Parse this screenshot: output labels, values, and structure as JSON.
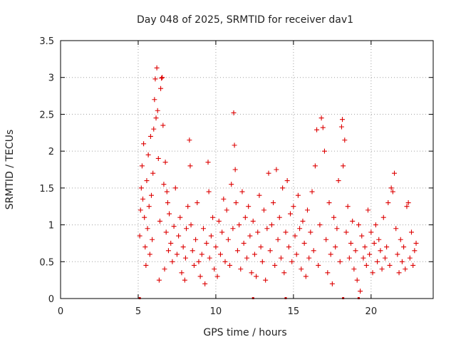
{
  "chart_data": {
    "type": "scatter",
    "title": "Day 048 of 2025, SRMTID for receiver dav1",
    "xlabel": "GPS time / hours",
    "ylabel": "SRMTID / TECUs",
    "xlim": [
      0,
      24
    ],
    "ylim": [
      0,
      3.5
    ],
    "x_ticks": [
      0,
      5,
      10,
      15,
      20
    ],
    "x_tick_labels": [
      "0",
      "5",
      "10",
      "15",
      "20"
    ],
    "y_ticks": [
      0,
      0.5,
      1,
      1.5,
      2,
      2.5,
      3,
      3.5
    ],
    "y_tick_labels": [
      "0",
      "0.5",
      "1",
      "1.5",
      "2",
      "2.5",
      "3",
      "3.5"
    ],
    "grid": true,
    "marker": "plus",
    "color": "#dd0000",
    "series": [
      {
        "name": "SRMTID",
        "points": [
          [
            5.1,
            0.85
          ],
          [
            5.15,
            1.2
          ],
          [
            5.2,
            1.5
          ],
          [
            5.25,
            1.8
          ],
          [
            5.3,
            1.35
          ],
          [
            5.35,
            2.1
          ],
          [
            5.4,
            1.1
          ],
          [
            5.45,
            0.7
          ],
          [
            5.5,
            0.45
          ],
          [
            5.55,
            1.6
          ],
          [
            5.6,
            0.95
          ],
          [
            5.65,
            1.95
          ],
          [
            5.7,
            1.25
          ],
          [
            5.75,
            0.6
          ],
          [
            5.8,
            2.2
          ],
          [
            5.85,
            1.4
          ],
          [
            5.9,
            0.8
          ],
          [
            5.95,
            1.7
          ],
          [
            6.0,
            2.3
          ],
          [
            6.05,
            2.7
          ],
          [
            6.1,
            2.98
          ],
          [
            6.15,
            2.45
          ],
          [
            6.2,
            3.13
          ],
          [
            6.25,
            2.55
          ],
          [
            6.3,
            1.9
          ],
          [
            6.35,
            0.25
          ],
          [
            6.4,
            1.05
          ],
          [
            6.45,
            2.85
          ],
          [
            6.5,
            2.99
          ],
          [
            6.55,
            3.0
          ],
          [
            6.6,
            2.35
          ],
          [
            6.65,
            1.55
          ],
          [
            6.7,
            0.4
          ],
          [
            6.75,
            1.85
          ],
          [
            6.8,
            0.9
          ],
          [
            6.85,
            1.45
          ],
          [
            6.9,
            1.3
          ],
          [
            6.95,
            0.65
          ],
          [
            7.0,
            1.15
          ],
          [
            7.1,
            0.75
          ],
          [
            7.2,
            0.5
          ],
          [
            7.3,
            0.98
          ],
          [
            7.4,
            1.5
          ],
          [
            7.5,
            0.6
          ],
          [
            7.6,
            0.85
          ],
          [
            7.7,
            1.1
          ],
          [
            7.8,
            0.35
          ],
          [
            7.9,
            0.7
          ],
          [
            8.0,
            0.25
          ],
          [
            8.05,
            0.55
          ],
          [
            8.1,
            0.95
          ],
          [
            8.2,
            1.25
          ],
          [
            8.3,
            2.15
          ],
          [
            8.35,
            1.8
          ],
          [
            8.4,
            1.0
          ],
          [
            8.5,
            0.65
          ],
          [
            8.6,
            0.45
          ],
          [
            8.7,
            0.8
          ],
          [
            8.8,
            1.3
          ],
          [
            8.9,
            0.5
          ],
          [
            9.0,
            0.3
          ],
          [
            9.1,
            0.6
          ],
          [
            9.2,
            0.95
          ],
          [
            9.3,
            0.2
          ],
          [
            9.4,
            0.75
          ],
          [
            9.5,
            1.85
          ],
          [
            9.55,
            1.45
          ],
          [
            9.6,
            0.55
          ],
          [
            9.7,
            0.85
          ],
          [
            9.8,
            1.1
          ],
          [
            9.9,
            0.4
          ],
          [
            10.0,
            0.7
          ],
          [
            10.1,
            0.3
          ],
          [
            10.2,
            1.05
          ],
          [
            10.3,
            0.6
          ],
          [
            10.4,
            0.9
          ],
          [
            10.5,
            1.35
          ],
          [
            10.6,
            0.5
          ],
          [
            10.7,
            1.2
          ],
          [
            10.8,
            0.8
          ],
          [
            10.9,
            0.45
          ],
          [
            11.0,
            1.55
          ],
          [
            11.1,
            0.95
          ],
          [
            11.15,
            2.52
          ],
          [
            11.2,
            2.08
          ],
          [
            11.25,
            1.75
          ],
          [
            11.3,
            1.3
          ],
          [
            11.4,
            0.65
          ],
          [
            11.5,
            1.0
          ],
          [
            11.6,
            0.4
          ],
          [
            11.7,
            1.45
          ],
          [
            11.8,
            0.75
          ],
          [
            11.9,
            1.1
          ],
          [
            12.0,
            0.55
          ],
          [
            12.1,
            1.25
          ],
          [
            12.2,
            0.85
          ],
          [
            12.3,
            0.35
          ],
          [
            12.4,
            1.05
          ],
          [
            12.5,
            0.6
          ],
          [
            12.6,
            0.3
          ],
          [
            12.7,
            0.9
          ],
          [
            12.8,
            1.4
          ],
          [
            12.9,
            0.7
          ],
          [
            13.0,
            0.5
          ],
          [
            13.1,
            1.2
          ],
          [
            13.2,
            0.25
          ],
          [
            13.3,
            0.95
          ],
          [
            13.4,
            1.7
          ],
          [
            13.5,
            0.65
          ],
          [
            13.6,
            1.0
          ],
          [
            13.7,
            1.3
          ],
          [
            13.8,
            0.45
          ],
          [
            13.9,
            1.75
          ],
          [
            14.0,
            0.8
          ],
          [
            14.1,
            1.1
          ],
          [
            14.2,
            0.55
          ],
          [
            14.3,
            1.5
          ],
          [
            14.4,
            0.35
          ],
          [
            14.5,
            0.9
          ],
          [
            14.6,
            1.6
          ],
          [
            14.7,
            0.7
          ],
          [
            14.8,
            1.15
          ],
          [
            14.9,
            0.5
          ],
          [
            15.0,
            1.25
          ],
          [
            15.1,
            0.85
          ],
          [
            15.2,
            0.6
          ],
          [
            15.3,
            1.4
          ],
          [
            15.4,
            0.95
          ],
          [
            15.5,
            0.4
          ],
          [
            15.6,
            1.05
          ],
          [
            15.7,
            0.75
          ],
          [
            15.8,
            0.3
          ],
          [
            15.9,
            1.2
          ],
          [
            16.0,
            0.55
          ],
          [
            16.1,
            0.9
          ],
          [
            16.2,
            1.45
          ],
          [
            16.3,
            0.65
          ],
          [
            16.4,
            1.8
          ],
          [
            16.5,
            2.29
          ],
          [
            16.6,
            0.45
          ],
          [
            16.7,
            1.0
          ],
          [
            16.8,
            2.45
          ],
          [
            16.9,
            2.32
          ],
          [
            17.0,
            2.0
          ],
          [
            17.1,
            0.8
          ],
          [
            17.2,
            0.35
          ],
          [
            17.3,
            1.3
          ],
          [
            17.4,
            0.6
          ],
          [
            17.5,
            0.2
          ],
          [
            17.6,
            1.1
          ],
          [
            17.7,
            0.7
          ],
          [
            17.8,
            0.95
          ],
          [
            17.9,
            1.6
          ],
          [
            18.0,
            0.5
          ],
          [
            18.1,
            2.33
          ],
          [
            18.15,
            2.43
          ],
          [
            18.2,
            1.8
          ],
          [
            18.3,
            2.15
          ],
          [
            18.4,
            0.9
          ],
          [
            18.5,
            1.25
          ],
          [
            18.6,
            0.55
          ],
          [
            18.7,
            0.75
          ],
          [
            18.8,
            1.05
          ],
          [
            18.9,
            0.4
          ],
          [
            19.0,
            0.65
          ],
          [
            19.1,
            0.25
          ],
          [
            19.2,
            1.0
          ],
          [
            19.3,
            0.1
          ],
          [
            19.4,
            0.85
          ],
          [
            19.5,
            0.55
          ],
          [
            19.6,
            0.7
          ],
          [
            19.7,
            0.45
          ],
          [
            19.8,
            1.2
          ],
          [
            19.9,
            0.6
          ],
          [
            20.0,
            0.9
          ],
          [
            20.1,
            0.35
          ],
          [
            20.2,
            0.75
          ],
          [
            20.3,
            1.0
          ],
          [
            20.4,
            0.5
          ],
          [
            20.5,
            0.8
          ],
          [
            20.6,
            0.65
          ],
          [
            20.7,
            0.4
          ],
          [
            20.8,
            1.1
          ],
          [
            20.9,
            0.55
          ],
          [
            21.0,
            0.7
          ],
          [
            21.1,
            1.3
          ],
          [
            21.2,
            0.45
          ],
          [
            21.3,
            1.5
          ],
          [
            21.4,
            1.45
          ],
          [
            21.5,
            1.7
          ],
          [
            21.6,
            0.95
          ],
          [
            21.7,
            0.6
          ],
          [
            21.8,
            0.35
          ],
          [
            21.9,
            0.8
          ],
          [
            22.0,
            0.5
          ],
          [
            22.1,
            0.7
          ],
          [
            22.2,
            0.4
          ],
          [
            22.3,
            1.25
          ],
          [
            22.4,
            1.3
          ],
          [
            22.5,
            0.55
          ],
          [
            22.6,
            0.9
          ],
          [
            22.7,
            0.45
          ],
          [
            22.8,
            0.65
          ],
          [
            22.9,
            0.75
          ]
        ]
      }
    ],
    "baseline_markers_x": [
      5.1,
      12.4,
      14.5,
      18.2,
      19.2
    ]
  }
}
